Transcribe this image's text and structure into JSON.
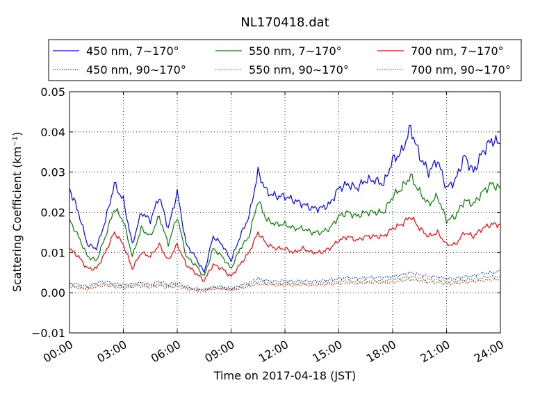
{
  "chart_data": {
    "type": "line",
    "title": "NL170418.dat",
    "xlabel": "Time on 2017-04-18 (JST)",
    "ylabel": "Scattering Coefficient (km⁻¹)",
    "xlim": [
      0,
      24
    ],
    "ylim": [
      -0.01,
      0.05
    ],
    "x_ticks": [
      0,
      3,
      6,
      9,
      12,
      15,
      18,
      21,
      24
    ],
    "x_tick_labels": [
      "00:00",
      "03:00",
      "06:00",
      "09:00",
      "12:00",
      "15:00",
      "18:00",
      "21:00",
      "24:00"
    ],
    "y_ticks": [
      -0.01,
      0.0,
      0.01,
      0.02,
      0.03,
      0.04,
      0.05
    ],
    "y_tick_labels": [
      "−0.01",
      "0.00",
      "0.01",
      "0.02",
      "0.03",
      "0.04",
      "0.05"
    ],
    "grid": true,
    "legend_position": "top, above plot (3 columns)",
    "x": [
      0.0,
      0.5,
      1.0,
      1.5,
      2.0,
      2.5,
      3.0,
      3.5,
      4.0,
      4.5,
      5.0,
      5.5,
      6.0,
      6.5,
      7.0,
      7.5,
      8.0,
      8.5,
      9.0,
      9.5,
      10.0,
      10.5,
      11.0,
      11.5,
      12.0,
      12.5,
      13.0,
      13.5,
      14.0,
      14.5,
      15.0,
      15.5,
      16.0,
      16.5,
      17.0,
      17.5,
      18.0,
      18.5,
      19.0,
      19.5,
      20.0,
      20.5,
      21.0,
      21.5,
      22.0,
      22.5,
      23.0,
      23.5,
      24.0
    ],
    "series": [
      {
        "name": "450 nm, 7∼170°",
        "color": "#0000ff",
        "style": "solid",
        "values": [
          0.026,
          0.02,
          0.012,
          0.011,
          0.018,
          0.027,
          0.023,
          0.012,
          0.02,
          0.018,
          0.024,
          0.016,
          0.025,
          0.012,
          0.009,
          0.005,
          0.014,
          0.012,
          0.008,
          0.014,
          0.019,
          0.03,
          0.025,
          0.024,
          0.024,
          0.023,
          0.022,
          0.021,
          0.021,
          0.022,
          0.026,
          0.027,
          0.026,
          0.028,
          0.028,
          0.027,
          0.033,
          0.035,
          0.041,
          0.034,
          0.03,
          0.033,
          0.026,
          0.028,
          0.034,
          0.03,
          0.035,
          0.038,
          0.037
        ]
      },
      {
        "name": "450 nm, 90∼170°",
        "color": "#0000ff",
        "style": "dotted",
        "values": [
          0.0025,
          0.002,
          0.0015,
          0.0025,
          0.0028,
          0.0022,
          0.002,
          0.0022,
          0.0025,
          0.002,
          0.0028,
          0.002,
          0.0025,
          0.0015,
          0.001,
          0.0008,
          0.0015,
          0.0015,
          0.001,
          0.0018,
          0.0025,
          0.0035,
          0.003,
          0.0028,
          0.003,
          0.0028,
          0.003,
          0.0028,
          0.003,
          0.0032,
          0.0035,
          0.0038,
          0.0035,
          0.0038,
          0.0038,
          0.0038,
          0.004,
          0.0045,
          0.005,
          0.0045,
          0.004,
          0.004,
          0.0035,
          0.0035,
          0.004,
          0.0042,
          0.0048,
          0.005,
          0.0052
        ]
      },
      {
        "name": "550 nm, 7∼170°",
        "color": "#008000",
        "style": "solid",
        "values": [
          0.018,
          0.014,
          0.009,
          0.008,
          0.014,
          0.021,
          0.018,
          0.009,
          0.016,
          0.014,
          0.019,
          0.012,
          0.019,
          0.009,
          0.007,
          0.004,
          0.011,
          0.009,
          0.006,
          0.011,
          0.014,
          0.023,
          0.018,
          0.017,
          0.017,
          0.016,
          0.016,
          0.015,
          0.015,
          0.016,
          0.019,
          0.02,
          0.019,
          0.02,
          0.02,
          0.02,
          0.024,
          0.026,
          0.029,
          0.025,
          0.022,
          0.024,
          0.018,
          0.019,
          0.023,
          0.022,
          0.025,
          0.027,
          0.026
        ]
      },
      {
        "name": "550 nm, 90∼170°",
        "color": "#008000",
        "style": "dotted",
        "values": [
          0.002,
          0.0015,
          0.001,
          0.002,
          0.0022,
          0.0018,
          0.0015,
          0.0018,
          0.002,
          0.0016,
          0.0022,
          0.0016,
          0.002,
          0.0012,
          0.0008,
          0.0006,
          0.0012,
          0.0012,
          0.0008,
          0.0014,
          0.002,
          0.0028,
          0.0024,
          0.0022,
          0.0024,
          0.0022,
          0.0024,
          0.0022,
          0.0024,
          0.0026,
          0.0028,
          0.003,
          0.0028,
          0.003,
          0.003,
          0.003,
          0.0032,
          0.0036,
          0.004,
          0.0036,
          0.0032,
          0.0032,
          0.0028,
          0.0028,
          0.0032,
          0.0034,
          0.0038,
          0.004,
          0.004
        ]
      },
      {
        "name": "700 nm, 7∼170°",
        "color": "#ff0000",
        "style": "solid",
        "values": [
          0.011,
          0.009,
          0.006,
          0.006,
          0.01,
          0.015,
          0.012,
          0.006,
          0.01,
          0.009,
          0.012,
          0.008,
          0.012,
          0.007,
          0.005,
          0.003,
          0.007,
          0.006,
          0.004,
          0.007,
          0.01,
          0.015,
          0.012,
          0.011,
          0.011,
          0.01,
          0.011,
          0.01,
          0.01,
          0.011,
          0.013,
          0.014,
          0.013,
          0.014,
          0.014,
          0.014,
          0.016,
          0.017,
          0.019,
          0.016,
          0.014,
          0.015,
          0.012,
          0.012,
          0.015,
          0.014,
          0.016,
          0.017,
          0.017
        ]
      },
      {
        "name": "700 nm, 90∼170°",
        "color": "#ff0000",
        "style": "dotted",
        "values": [
          0.0015,
          0.0012,
          0.0008,
          0.0015,
          0.0018,
          0.0015,
          0.0012,
          0.0015,
          0.0016,
          0.0013,
          0.0018,
          0.0013,
          0.0016,
          0.001,
          0.0006,
          0.0005,
          0.001,
          0.001,
          0.0006,
          0.0011,
          0.0016,
          0.0022,
          0.002,
          0.0018,
          0.002,
          0.0018,
          0.002,
          0.0018,
          0.002,
          0.0021,
          0.0023,
          0.0025,
          0.0023,
          0.0025,
          0.0025,
          0.0025,
          0.0026,
          0.003,
          0.0033,
          0.003,
          0.0026,
          0.0026,
          0.0023,
          0.0023,
          0.0026,
          0.0028,
          0.003,
          0.0032,
          0.0033
        ]
      }
    ]
  }
}
